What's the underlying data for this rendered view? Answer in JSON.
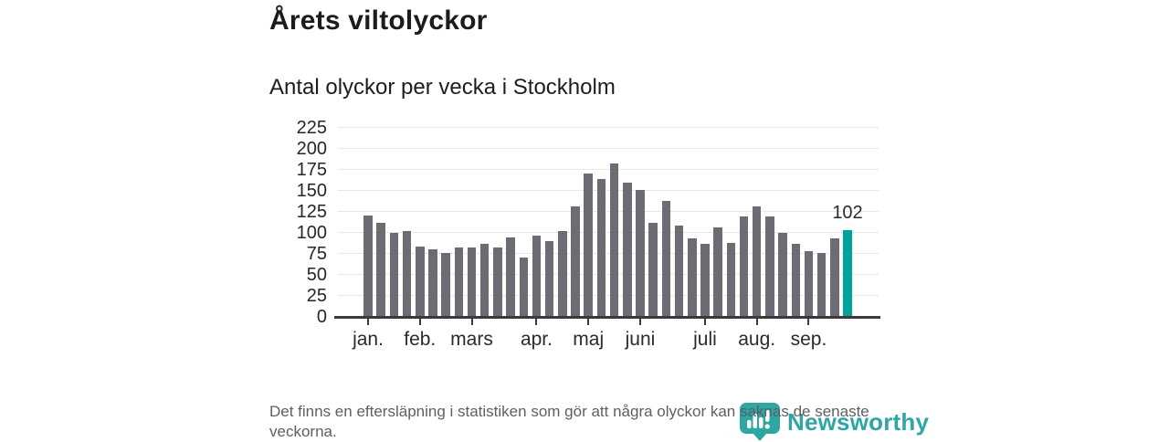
{
  "header": {
    "title": "Årets viltolyckor",
    "subtitle": "Antal olyckor per vecka i Stockholm"
  },
  "chart_data": {
    "type": "bar",
    "title": "Årets viltolyckor",
    "subtitle": "Antal olyckor per vecka i Stockholm",
    "x_unit": "vecka",
    "x": [
      1,
      2,
      3,
      4,
      5,
      6,
      7,
      8,
      9,
      10,
      11,
      12,
      13,
      14,
      15,
      16,
      17,
      18,
      19,
      20,
      21,
      22,
      23,
      24,
      25,
      26,
      27,
      28,
      29,
      30,
      31,
      32,
      33,
      34,
      35,
      36,
      37,
      38
    ],
    "values": [
      120,
      111,
      99,
      101,
      83,
      79,
      75,
      82,
      82,
      86,
      81,
      93,
      70,
      96,
      89,
      101,
      130,
      170,
      163,
      182,
      159,
      150,
      111,
      137,
      108,
      92,
      86,
      105,
      87,
      119,
      130,
      119,
      99,
      86,
      77,
      75,
      92,
      102
    ],
    "highlight": {
      "week": 38,
      "label": "102",
      "color": "#00a39a"
    },
    "month_ticks": [
      {
        "label": "jan.",
        "week": 1
      },
      {
        "label": "feb.",
        "week": 5
      },
      {
        "label": "mars",
        "week": 9
      },
      {
        "label": "apr.",
        "week": 14
      },
      {
        "label": "maj",
        "week": 18
      },
      {
        "label": "juni",
        "week": 22
      },
      {
        "label": "juli",
        "week": 27
      },
      {
        "label": "aug.",
        "week": 31
      },
      {
        "label": "sep.",
        "week": 35
      }
    ],
    "yticks": [
      0,
      25,
      50,
      75,
      100,
      125,
      150,
      175,
      200,
      225
    ],
    "ylim": [
      0,
      225
    ],
    "grid": true,
    "legend": false,
    "bar_color": "#6c6c74",
    "grid_color": "#e7e7e7",
    "axis_color": "#3a3a3a"
  },
  "footer": {
    "note": "Det finns en eftersläpning i statistiken som gör att några olyckor kan saknas de senaste veckorna.",
    "brand": "Newsworthy"
  }
}
